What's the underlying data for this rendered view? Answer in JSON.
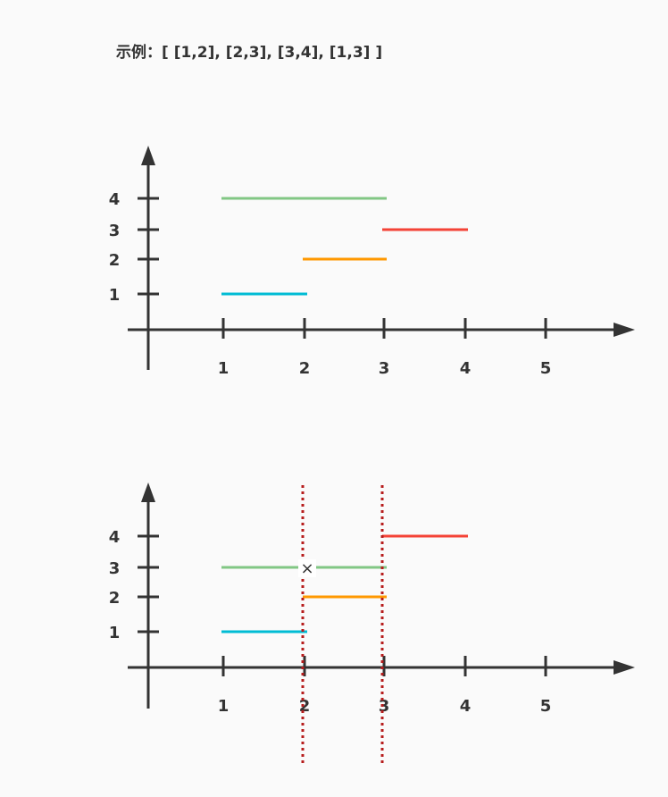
{
  "example_label": "示例：[ [1,2], [2,3], [3,4], [1,3] ]",
  "colors": {
    "axis": "#333333",
    "guide": "#b71c1c",
    "interval_1_2": "#00bcd4",
    "interval_2_3": "#ff9800",
    "interval_3_4": "#f44336",
    "interval_1_3": "#81c784"
  },
  "diagrams": [
    {
      "x_ticks": [
        "1",
        "2",
        "3",
        "4",
        "5"
      ],
      "y_ticks": [
        "1",
        "2",
        "3",
        "4"
      ],
      "intervals": [
        {
          "start": 1,
          "end": 2,
          "row": 1,
          "color_key": "interval_1_2"
        },
        {
          "start": 2,
          "end": 3,
          "row": 2,
          "color_key": "interval_2_3"
        },
        {
          "start": 3,
          "end": 4,
          "row": 3,
          "color_key": "interval_3_4"
        },
        {
          "start": 1,
          "end": 3,
          "row": 4,
          "color_key": "interval_1_3"
        }
      ],
      "guides": [],
      "marker": null
    },
    {
      "x_ticks": [
        "1",
        "2",
        "3",
        "4",
        "5"
      ],
      "y_ticks": [
        "1",
        "2",
        "3",
        "4"
      ],
      "intervals": [
        {
          "start": 1,
          "end": 2,
          "row": 1,
          "color_key": "interval_1_2"
        },
        {
          "start": 2,
          "end": 3,
          "row": 2,
          "color_key": "interval_2_3"
        },
        {
          "start": 1,
          "end": 3,
          "row": 3,
          "color_key": "interval_1_3"
        },
        {
          "start": 3,
          "end": 4,
          "row": 4,
          "color_key": "interval_3_4"
        }
      ],
      "guides": [
        2,
        3
      ],
      "marker": {
        "symbol": "×",
        "x": 2,
        "row": 3
      }
    }
  ]
}
